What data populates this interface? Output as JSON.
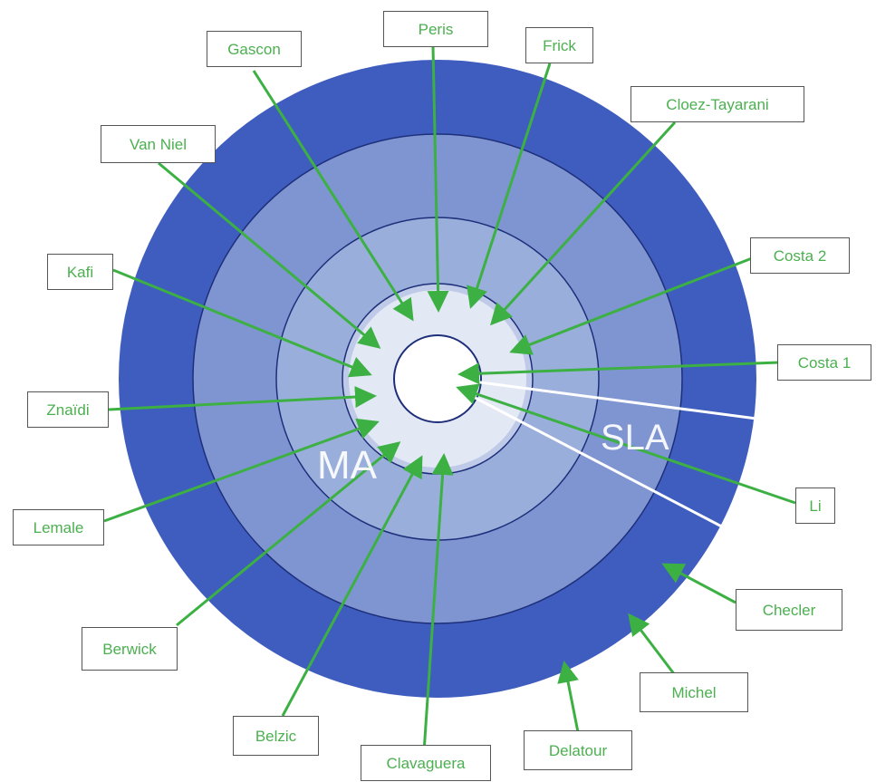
{
  "colors": {
    "ring_outer": "#3F5DBE",
    "ring_2": "#7F95D2",
    "ring_3": "#9AAEDC",
    "ring_4": "#BECAE8",
    "ring_5": "#E3E8F5",
    "center": "#FFFFFF",
    "ring_border": "#1E2F7A",
    "arrow": "#3CB043",
    "label_text": "#4CAF50",
    "wedge_line": "#FFFFFF"
  },
  "regions": {
    "ma": "MA",
    "sla": "SLA"
  },
  "labels": {
    "peris": "Peris",
    "gascon": "Gascon",
    "frick": "Frick",
    "cloez_tayarani": "Cloez-Tayarani",
    "van_niel": "Van Niel",
    "costa_2": "Costa 2",
    "kafi": "Kafi",
    "costa_1": "Costa 1",
    "znaidi": "Znaïdi",
    "li": "Li",
    "lemale": "Lemale",
    "checler": "Checler",
    "berwick": "Berwick",
    "michel": "Michel",
    "belzic": "Belzic",
    "clavaguera": "Clavaguera",
    "delatour": "Delatour"
  }
}
